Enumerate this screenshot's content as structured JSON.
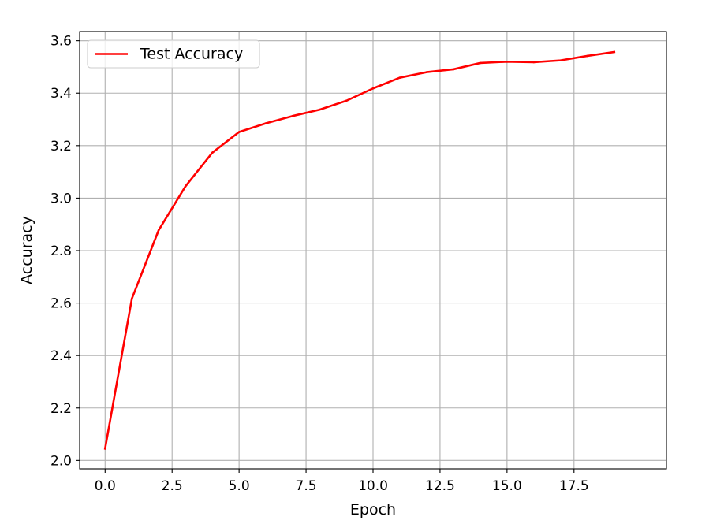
{
  "chart_data": {
    "type": "line",
    "title": "",
    "xlabel": "Epoch",
    "ylabel": "Accuracy",
    "xlim": [
      -0.95,
      20.95
    ],
    "ylim": [
      1.968,
      3.635
    ],
    "x_ticks": [
      0.0,
      2.5,
      5.0,
      7.5,
      10.0,
      12.5,
      15.0,
      17.5
    ],
    "x_tick_labels": [
      "0.0",
      "2.5",
      "5.0",
      "7.5",
      "10.0",
      "12.5",
      "15.0",
      "17.5"
    ],
    "y_ticks": [
      2.0,
      2.2,
      2.4,
      2.6,
      2.8,
      3.0,
      3.2,
      3.4,
      3.6
    ],
    "y_tick_labels": [
      "2.0",
      "2.2",
      "2.4",
      "2.6",
      "2.8",
      "3.0",
      "3.2",
      "3.4",
      "3.6"
    ],
    "grid": true,
    "legend_position": "top-left",
    "x": [
      0,
      1,
      2,
      3,
      4,
      5,
      6,
      7,
      8,
      9,
      10,
      11,
      12,
      13,
      14,
      15,
      16,
      17,
      18,
      19
    ],
    "series": [
      {
        "name": "Test Accuracy",
        "color": "#ff0000",
        "values": [
          2.045,
          2.617,
          2.878,
          3.045,
          3.173,
          3.252,
          3.285,
          3.313,
          3.337,
          3.371,
          3.418,
          3.459,
          3.48,
          3.491,
          3.515,
          3.52,
          3.518,
          3.525,
          3.542,
          3.557
        ]
      }
    ]
  }
}
